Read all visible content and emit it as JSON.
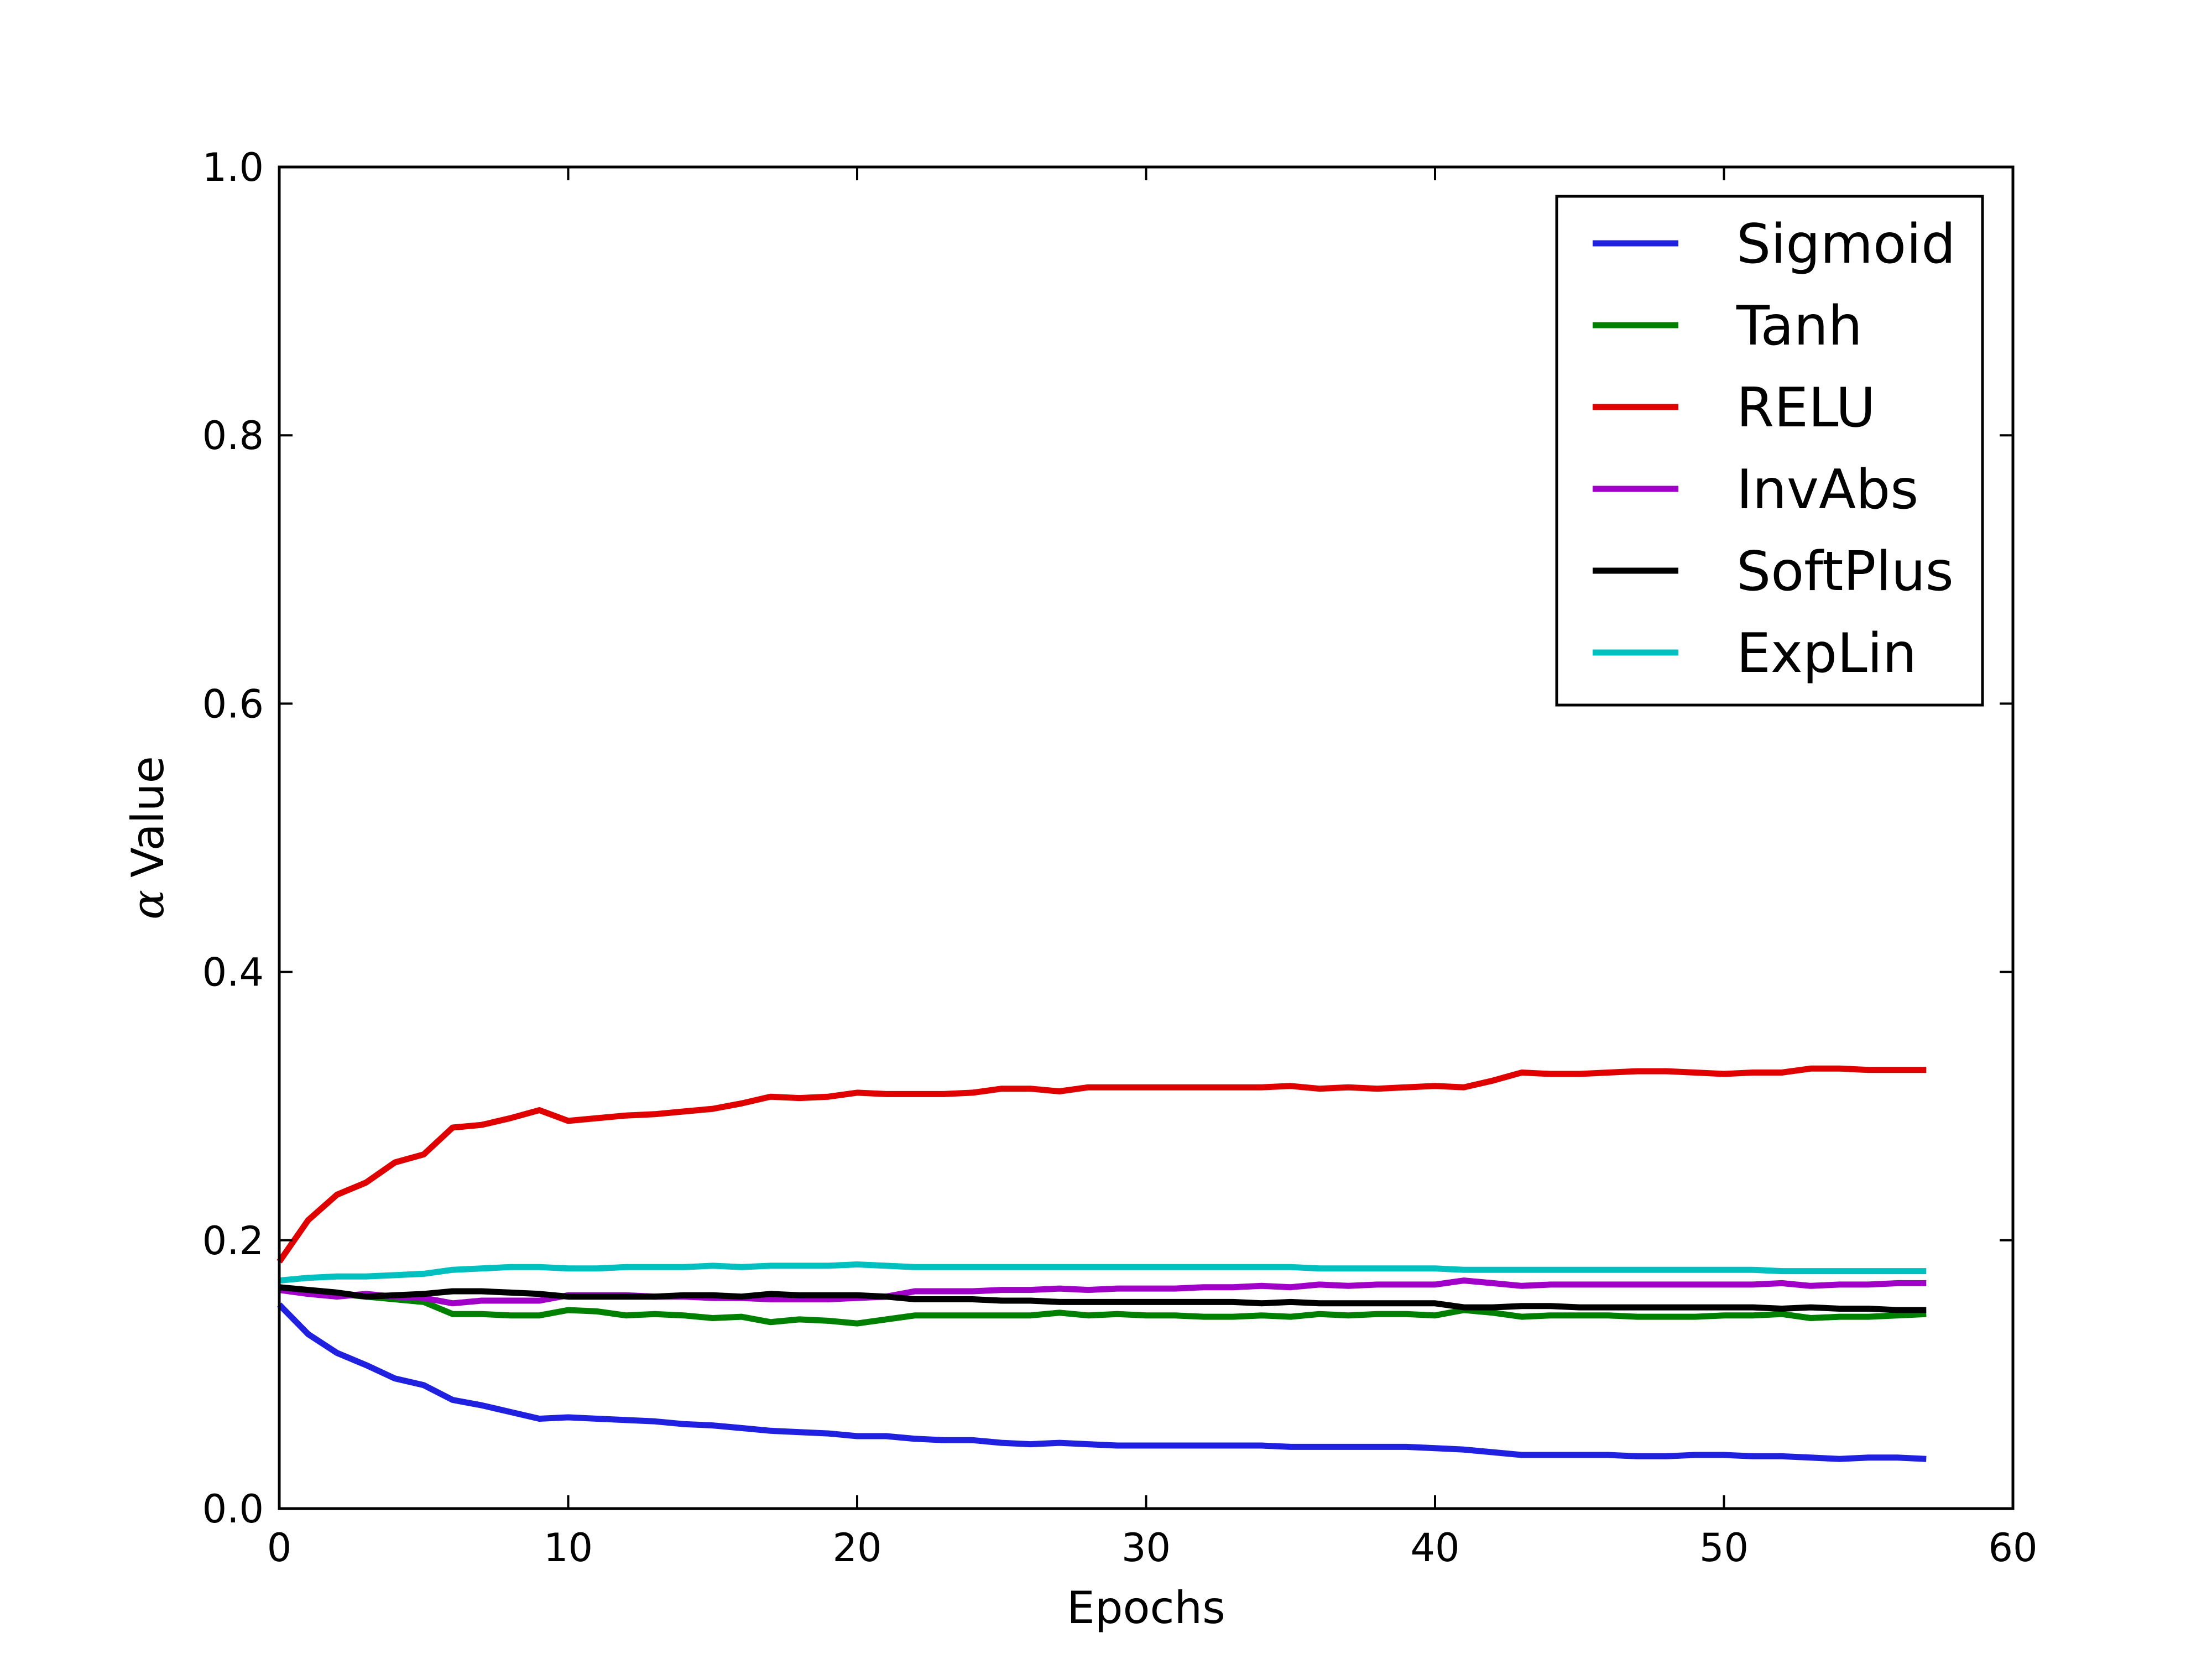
{
  "chart_data": {
    "type": "line",
    "title": "",
    "xlabel": "Epochs",
    "ylabel_symbol": "α",
    "ylabel_text": "Value",
    "xlim": [
      0,
      60
    ],
    "ylim": [
      0.0,
      1.0
    ],
    "xticks": [
      0,
      10,
      20,
      30,
      40,
      50,
      60
    ],
    "xtick_labels": [
      "0",
      "10",
      "20",
      "30",
      "40",
      "50",
      "60"
    ],
    "yticks": [
      0.0,
      0.2,
      0.4,
      0.6,
      0.8,
      1.0
    ],
    "ytick_labels": [
      "0.0",
      "0.2",
      "0.4",
      "0.6",
      "0.8",
      "1.0"
    ],
    "grid": false,
    "legend_position": "top-right",
    "x": [
      0,
      1,
      2,
      3,
      4,
      5,
      6,
      7,
      8,
      9,
      10,
      11,
      12,
      13,
      14,
      15,
      16,
      17,
      18,
      19,
      20,
      21,
      22,
      23,
      24,
      25,
      26,
      27,
      28,
      29,
      30,
      31,
      32,
      33,
      34,
      35,
      36,
      37,
      38,
      39,
      40,
      41,
      42,
      43,
      44,
      45,
      46,
      47,
      48,
      49,
      50,
      51,
      52,
      53,
      54,
      55,
      56,
      57
    ],
    "series": [
      {
        "name": "Sigmoid",
        "color": "#2020e0",
        "values": [
          0.152,
          0.13,
          0.116,
          0.107,
          0.097,
          0.092,
          0.081,
          0.077,
          0.072,
          0.067,
          0.068,
          0.067,
          0.066,
          0.065,
          0.063,
          0.062,
          0.06,
          0.058,
          0.057,
          0.056,
          0.054,
          0.054,
          0.052,
          0.051,
          0.051,
          0.049,
          0.048,
          0.049,
          0.048,
          0.047,
          0.047,
          0.047,
          0.047,
          0.047,
          0.047,
          0.046,
          0.046,
          0.046,
          0.046,
          0.046,
          0.045,
          0.044,
          0.042,
          0.04,
          0.04,
          0.04,
          0.04,
          0.039,
          0.039,
          0.04,
          0.04,
          0.039,
          0.039,
          0.038,
          0.037,
          0.038,
          0.038,
          0.037
        ]
      },
      {
        "name": "Tanh",
        "color": "#008000",
        "values": [
          0.165,
          0.162,
          0.16,
          0.158,
          0.156,
          0.154,
          0.145,
          0.145,
          0.144,
          0.144,
          0.148,
          0.147,
          0.144,
          0.145,
          0.144,
          0.142,
          0.143,
          0.139,
          0.141,
          0.14,
          0.138,
          0.141,
          0.144,
          0.144,
          0.144,
          0.144,
          0.144,
          0.146,
          0.144,
          0.145,
          0.144,
          0.144,
          0.143,
          0.143,
          0.144,
          0.143,
          0.145,
          0.144,
          0.145,
          0.145,
          0.144,
          0.148,
          0.146,
          0.143,
          0.144,
          0.144,
          0.144,
          0.143,
          0.143,
          0.143,
          0.144,
          0.144,
          0.145,
          0.142,
          0.143,
          0.143,
          0.144,
          0.145
        ]
      },
      {
        "name": "RELU",
        "color": "#e00000",
        "values": [
          0.184,
          0.215,
          0.234,
          0.243,
          0.258,
          0.264,
          0.284,
          0.286,
          0.291,
          0.297,
          0.289,
          0.291,
          0.293,
          0.294,
          0.296,
          0.298,
          0.302,
          0.307,
          0.306,
          0.307,
          0.31,
          0.309,
          0.309,
          0.309,
          0.31,
          0.313,
          0.313,
          0.311,
          0.314,
          0.314,
          0.314,
          0.314,
          0.314,
          0.314,
          0.314,
          0.315,
          0.313,
          0.314,
          0.313,
          0.314,
          0.315,
          0.314,
          0.319,
          0.325,
          0.324,
          0.324,
          0.325,
          0.326,
          0.326,
          0.325,
          0.324,
          0.325,
          0.325,
          0.328,
          0.328,
          0.327,
          0.327,
          0.327
        ]
      },
      {
        "name": "InvAbs",
        "color": "#a000c8",
        "values": [
          0.163,
          0.16,
          0.158,
          0.16,
          0.158,
          0.157,
          0.153,
          0.155,
          0.155,
          0.155,
          0.159,
          0.159,
          0.159,
          0.158,
          0.158,
          0.157,
          0.157,
          0.156,
          0.156,
          0.156,
          0.157,
          0.158,
          0.162,
          0.162,
          0.162,
          0.163,
          0.163,
          0.164,
          0.163,
          0.164,
          0.164,
          0.164,
          0.165,
          0.165,
          0.166,
          0.165,
          0.167,
          0.166,
          0.167,
          0.167,
          0.167,
          0.17,
          0.168,
          0.166,
          0.167,
          0.167,
          0.167,
          0.167,
          0.167,
          0.167,
          0.167,
          0.167,
          0.168,
          0.166,
          0.167,
          0.167,
          0.168,
          0.168
        ]
      },
      {
        "name": "SoftPlus",
        "color": "#000000",
        "values": [
          0.165,
          0.163,
          0.161,
          0.158,
          0.159,
          0.16,
          0.162,
          0.162,
          0.161,
          0.16,
          0.158,
          0.158,
          0.158,
          0.158,
          0.159,
          0.159,
          0.158,
          0.16,
          0.159,
          0.159,
          0.159,
          0.158,
          0.156,
          0.156,
          0.156,
          0.155,
          0.155,
          0.154,
          0.154,
          0.154,
          0.154,
          0.154,
          0.154,
          0.154,
          0.153,
          0.154,
          0.153,
          0.153,
          0.153,
          0.153,
          0.153,
          0.15,
          0.15,
          0.151,
          0.151,
          0.15,
          0.15,
          0.15,
          0.15,
          0.15,
          0.15,
          0.15,
          0.149,
          0.15,
          0.149,
          0.149,
          0.148,
          0.148
        ]
      },
      {
        "name": "ExpLin",
        "color": "#00c0c0",
        "values": [
          0.17,
          0.172,
          0.173,
          0.173,
          0.174,
          0.175,
          0.178,
          0.179,
          0.18,
          0.18,
          0.179,
          0.179,
          0.18,
          0.18,
          0.18,
          0.181,
          0.18,
          0.181,
          0.181,
          0.181,
          0.182,
          0.181,
          0.18,
          0.18,
          0.18,
          0.18,
          0.18,
          0.18,
          0.18,
          0.18,
          0.18,
          0.18,
          0.18,
          0.18,
          0.18,
          0.18,
          0.179,
          0.179,
          0.179,
          0.179,
          0.179,
          0.178,
          0.178,
          0.178,
          0.178,
          0.178,
          0.178,
          0.178,
          0.178,
          0.178,
          0.178,
          0.178,
          0.177,
          0.177,
          0.177,
          0.177,
          0.177,
          0.177
        ]
      }
    ]
  }
}
